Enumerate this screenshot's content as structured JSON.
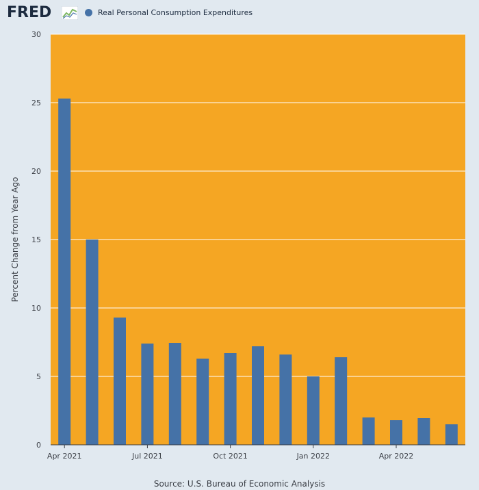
{
  "header": {
    "logo_text": "FRED",
    "logo_icon": "fred-chart-line-icon",
    "legend_label": "Real Personal Consumption Expenditures"
  },
  "colors": {
    "background": "#e1e9f0",
    "plot_background": "#f5a623",
    "bar": "#4572a7",
    "grid": "#ffffff"
  },
  "source": "Source: U.S. Bureau of Economic Analysis",
  "chart_data": {
    "type": "bar",
    "categories": [
      "Apr 2021",
      "May 2021",
      "Jun 2021",
      "Jul 2021",
      "Aug 2021",
      "Sep 2021",
      "Oct 2021",
      "Nov 2021",
      "Dec 2021",
      "Jan 2022",
      "Feb 2022",
      "Mar 2022",
      "Apr 2022",
      "May 2022",
      "Jun 2022"
    ],
    "series": [
      {
        "name": "Real Personal Consumption Expenditures",
        "values": [
          25.3,
          15.0,
          9.3,
          7.4,
          7.45,
          6.3,
          6.7,
          7.2,
          6.6,
          5.0,
          6.4,
          2.0,
          1.8,
          1.95,
          1.5
        ]
      }
    ],
    "xtick_labels": [
      {
        "category": "Apr 2021",
        "label": "Apr 2021"
      },
      {
        "category": "Jul 2021",
        "label": "Jul 2021"
      },
      {
        "category": "Oct 2021",
        "label": "Oct 2021"
      },
      {
        "category": "Jan 2022",
        "label": "Jan 2022"
      },
      {
        "category": "Apr 2022",
        "label": "Apr 2022"
      }
    ],
    "yticks": [
      0,
      5,
      10,
      15,
      20,
      25,
      30
    ],
    "ylim": [
      0,
      30
    ],
    "xlabel": "",
    "ylabel": "Percent Change from Year Ago",
    "grid": true,
    "legend": "top-left"
  }
}
